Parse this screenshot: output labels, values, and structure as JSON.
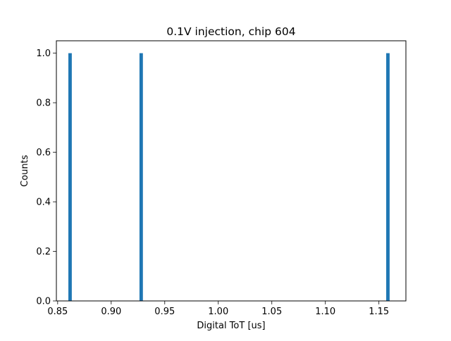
{
  "chart_data": {
    "type": "bar",
    "title": "0.1V injection, chip 604",
    "xlabel": "Digital ToT [us]",
    "ylabel": "Counts",
    "xlim": [
      0.8488,
      1.1752
    ],
    "ylim": [
      0,
      1.05
    ],
    "xticks": [
      "0.85",
      "0.90",
      "0.95",
      "1.00",
      "1.05",
      "1.10",
      "1.15"
    ],
    "yticks": [
      "0.0",
      "0.2",
      "0.4",
      "0.6",
      "0.8",
      "1.0"
    ],
    "bin_width": 0.0032,
    "bars": [
      {
        "x_start": 0.86,
        "x_end": 0.8632,
        "count": 1
      },
      {
        "x_start": 0.9264,
        "x_end": 0.9296,
        "count": 1
      },
      {
        "x_start": 1.1568,
        "x_end": 1.16,
        "count": 1
      }
    ],
    "grid": false,
    "legend": "none",
    "bar_color": "#1f77b4"
  }
}
